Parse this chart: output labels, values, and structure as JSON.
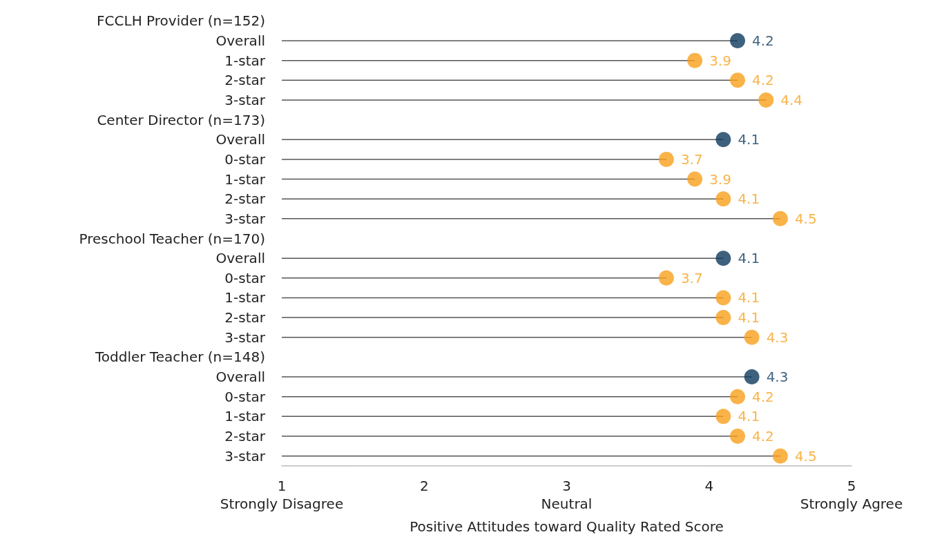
{
  "chart_data": {
    "type": "lollipop",
    "orientation": "horizontal",
    "xlabel": "Positive Attitudes toward Quality Rated Score",
    "categories": [
      "FCCLH Provider (n=152)",
      "Overall",
      "1-star",
      "2-star",
      "3-star",
      "Center Director (n=173)",
      "Overall",
      "0-star",
      "1-star",
      "2-star",
      "3-star",
      "Preschool Teacher (n=170)",
      "Overall",
      "0-star",
      "1-star",
      "2-star",
      "3-star",
      "Toddler Teacher (n=148)",
      "Overall",
      "0-star",
      "1-star",
      "2-star",
      "3-star"
    ],
    "values": [
      null,
      4.2,
      3.9,
      4.2,
      4.4,
      null,
      4.1,
      3.7,
      3.9,
      4.1,
      4.5,
      null,
      4.1,
      3.7,
      4.1,
      4.1,
      4.3,
      null,
      4.3,
      4.2,
      4.1,
      4.2,
      4.5
    ],
    "colors": [
      null,
      "#0e3a5e",
      "#f8a01c",
      "#f8a01c",
      "#f8a01c",
      null,
      "#0e3a5e",
      "#f8a01c",
      "#f8a01c",
      "#f8a01c",
      "#f8a01c",
      null,
      "#0e3a5e",
      "#f8a01c",
      "#f8a01c",
      "#f8a01c",
      "#f8a01c",
      null,
      "#0e3a5e",
      "#f8a01c",
      "#f8a01c",
      "#f8a01c",
      "#f8a01c"
    ],
    "xlim": [
      1,
      5
    ],
    "xticks": [
      {
        "value": 1,
        "label": "1\nStrongly Disagree"
      },
      2,
      {
        "value": 3,
        "label": "3\nNeutral"
      },
      4,
      {
        "value": 5,
        "label": "5\nStrongly Agree"
      }
    ],
    "data_labels": true,
    "grid": false,
    "marker": "circle"
  }
}
